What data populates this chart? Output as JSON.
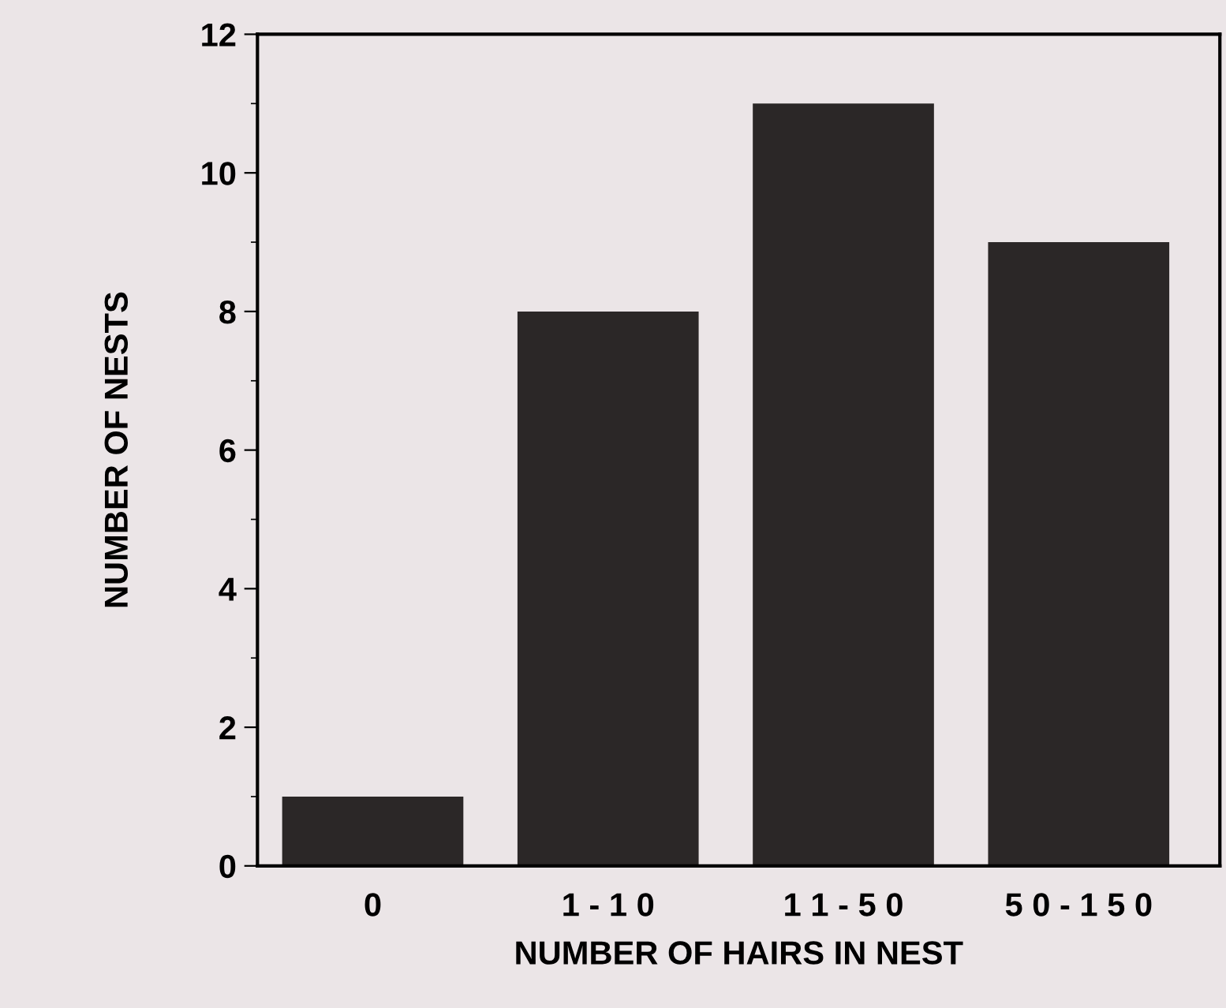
{
  "chart_data": {
    "type": "bar",
    "xlabel": "NUMBER OF HAIRS IN NEST",
    "ylabel": "NUMBER OF NESTS",
    "categories": [
      "0",
      "1 - 1 0",
      "1 1 - 5 0",
      "5 0 - 1 5 0"
    ],
    "values": [
      1,
      8,
      11,
      9
    ],
    "color": "#2b2727",
    "ylim": [
      0,
      12
    ],
    "yticks": [
      0,
      2,
      4,
      6,
      8,
      10,
      12
    ],
    "grid": false,
    "legend": false
  }
}
